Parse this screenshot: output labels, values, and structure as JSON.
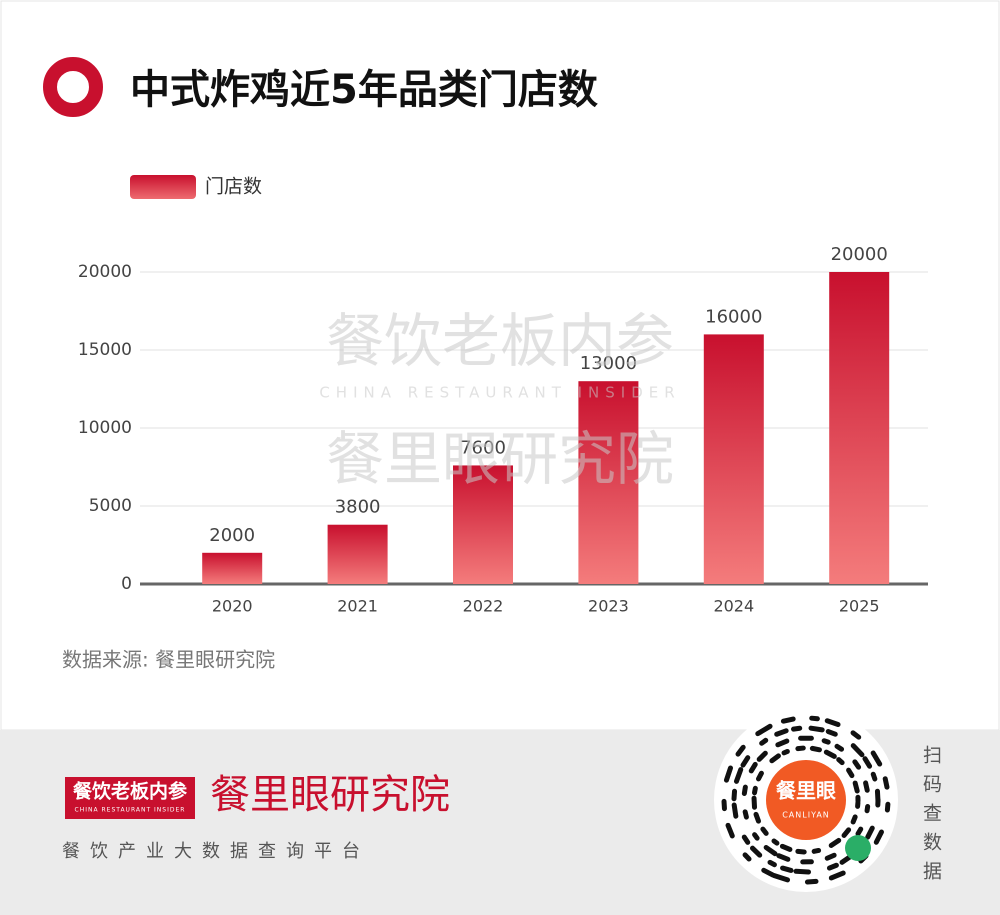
{
  "chart_data": {
    "type": "bar",
    "title": "中式炸鸡近5年品类门店数",
    "categories": [
      "2020",
      "2021",
      "2022",
      "2023",
      "2024",
      "2025"
    ],
    "series": [
      {
        "name": "门店数",
        "color": "#c8102e",
        "values": [
          2000,
          3800,
          7600,
          13000,
          16000,
          20000
        ]
      }
    ],
    "ylim": [
      0,
      20000
    ],
    "yticks": [
      0,
      5000,
      10000,
      15000,
      20000
    ],
    "grid": true,
    "source": "数据来源: 餐里眼研究院"
  },
  "watermark": {
    "brand": "餐饮老板内参",
    "english": "CHINA RESTAURANT INSIDER",
    "institute": "餐里眼研究院"
  },
  "footer": {
    "brand": "餐饮老板内参",
    "english": "CHINA RESTAURANT INSIDER",
    "institute": "餐里眼研究院",
    "tagline": "餐饮产业大数据查询平台",
    "qr_label": "餐里眼",
    "qr_sub": "CANLIYAN",
    "scan_text": "扫码查数据"
  }
}
